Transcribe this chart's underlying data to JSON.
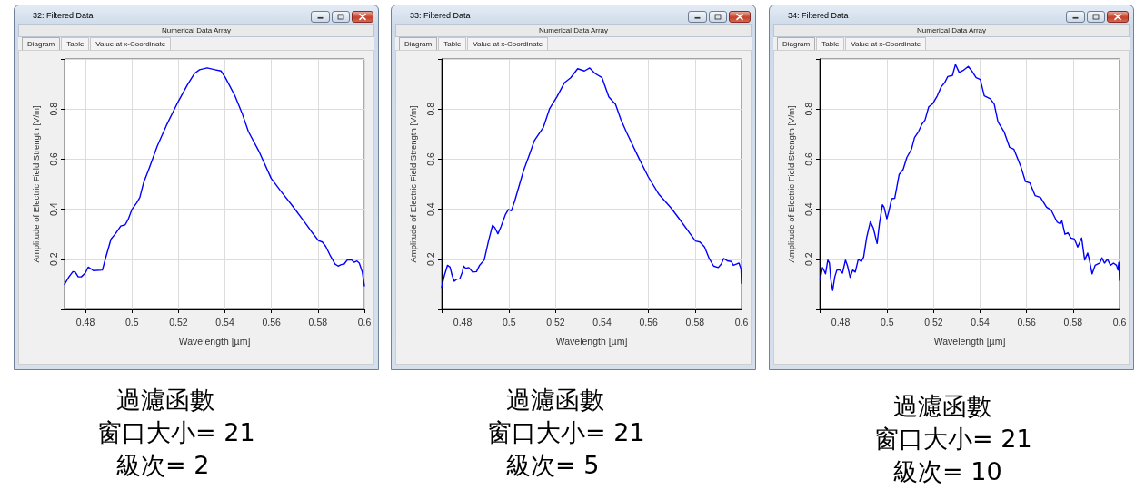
{
  "chart_data": [
    {
      "type": "line",
      "title": "32: Filtered Data",
      "subtitle": "Numerical Data Array",
      "xlabel": "Wavelength [µm]",
      "ylabel": "Amplitude of Electric Field Strength [V/m]",
      "annotations": [
        "Diagram",
        "Table",
        "Value at x-Coordinate",
        "過濾函數",
        "窗口大小= 21",
        "級次= 2"
      ],
      "color": "#0000ff",
      "marker": "none",
      "grid": true,
      "xlim": [
        0.471,
        0.6
      ],
      "ylim": [
        0,
        1
      ],
      "xticks": [
        0.48,
        0.5,
        0.52,
        0.54,
        0.56,
        0.58,
        0.6
      ],
      "yticks": [
        0.2,
        0.4,
        0.6,
        0.8
      ],
      "x": [
        0.471,
        0.4729,
        0.4746,
        0.4756,
        0.4769,
        0.4782,
        0.4799,
        0.4812,
        0.4821,
        0.4834,
        0.4873,
        0.4886,
        0.491,
        0.4929,
        0.4952,
        0.4971,
        0.4984,
        0.5,
        0.5021,
        0.5034,
        0.505,
        0.5076,
        0.5109,
        0.5148,
        0.5193,
        0.5239,
        0.5269,
        0.5291,
        0.5324,
        0.5357,
        0.5383,
        0.5402,
        0.5442,
        0.5474,
        0.5501,
        0.5546,
        0.5599,
        0.5638,
        0.569,
        0.5743,
        0.5776,
        0.5802,
        0.5819,
        0.5834,
        0.5854,
        0.5874,
        0.5887,
        0.59,
        0.5913,
        0.5926,
        0.5946,
        0.5956,
        0.5968,
        0.5978,
        0.5991,
        0.6
      ],
      "values": [
        0.1,
        0.13,
        0.151,
        0.149,
        0.13,
        0.13,
        0.145,
        0.169,
        0.164,
        0.155,
        0.157,
        0.203,
        0.281,
        0.302,
        0.333,
        0.338,
        0.36,
        0.399,
        0.426,
        0.447,
        0.505,
        0.568,
        0.652,
        0.734,
        0.819,
        0.897,
        0.942,
        0.957,
        0.964,
        0.957,
        0.952,
        0.925,
        0.855,
        0.783,
        0.71,
        0.632,
        0.523,
        0.475,
        0.414,
        0.348,
        0.306,
        0.275,
        0.269,
        0.251,
        0.213,
        0.181,
        0.173,
        0.179,
        0.181,
        0.197,
        0.197,
        0.188,
        0.193,
        0.185,
        0.149,
        0.094
      ]
    },
    {
      "type": "line",
      "title": "33: Filtered Data",
      "subtitle": "Numerical Data Array",
      "xlabel": "Wavelength [µm]",
      "ylabel": "Amplitude of Electric Field Strength [V/m]",
      "annotations": [
        "Diagram",
        "Table",
        "Value at x-Coordinate",
        "過濾函數",
        "窗口大小= 21",
        "級次= 5"
      ],
      "color": "#0000ff",
      "marker": "none",
      "grid": true,
      "xlim": [
        0.471,
        0.6
      ],
      "ylim": [
        0,
        1
      ],
      "xticks": [
        0.48,
        0.5,
        0.52,
        0.54,
        0.56,
        0.58,
        0.6
      ],
      "yticks": [
        0.2,
        0.4,
        0.6,
        0.8
      ],
      "x": [
        0.471,
        0.4722,
        0.4735,
        0.4746,
        0.4755,
        0.4764,
        0.4775,
        0.4788,
        0.4799,
        0.4804,
        0.4814,
        0.4827,
        0.4843,
        0.486,
        0.4873,
        0.4893,
        0.4912,
        0.4929,
        0.4939,
        0.4952,
        0.4965,
        0.4984,
        0.4997,
        0.501,
        0.5024,
        0.5043,
        0.5063,
        0.5086,
        0.5109,
        0.5148,
        0.5174,
        0.5206,
        0.5239,
        0.5265,
        0.5295,
        0.5324,
        0.5347,
        0.537,
        0.54,
        0.5429,
        0.5458,
        0.5481,
        0.5507,
        0.556,
        0.5599,
        0.5645,
        0.5697,
        0.5736,
        0.5776,
        0.5802,
        0.5821,
        0.5841,
        0.5861,
        0.588,
        0.59,
        0.5913,
        0.5923,
        0.5939,
        0.5956,
        0.5965,
        0.5978,
        0.5989,
        0.5998,
        0.6
      ],
      "values": [
        0.088,
        0.136,
        0.176,
        0.169,
        0.136,
        0.112,
        0.121,
        0.122,
        0.149,
        0.173,
        0.164,
        0.167,
        0.149,
        0.151,
        0.176,
        0.197,
        0.275,
        0.336,
        0.326,
        0.302,
        0.33,
        0.378,
        0.399,
        0.394,
        0.432,
        0.493,
        0.556,
        0.614,
        0.674,
        0.728,
        0.801,
        0.849,
        0.906,
        0.925,
        0.961,
        0.952,
        0.964,
        0.942,
        0.925,
        0.849,
        0.819,
        0.758,
        0.704,
        0.601,
        0.529,
        0.459,
        0.405,
        0.357,
        0.306,
        0.273,
        0.269,
        0.249,
        0.203,
        0.173,
        0.167,
        0.181,
        0.203,
        0.194,
        0.191,
        0.176,
        0.181,
        0.185,
        0.161,
        0.104
      ]
    },
    {
      "type": "line",
      "title": "34: Filtered Data",
      "subtitle": "Numerical Data Array",
      "xlabel": "Wavelength [µm]",
      "ylabel": "Amplitude of Electric Field Strength [V/m]",
      "annotations": [
        "Diagram",
        "Table",
        "Value at x-Coordinate",
        "過濾函數",
        "窗口大小= 21",
        "級次= 10"
      ],
      "color": "#0000ff",
      "marker": "none",
      "grid": true,
      "xlim": [
        0.471,
        0.6
      ],
      "ylim": [
        0,
        1
      ],
      "xticks": [
        0.48,
        0.5,
        0.52,
        0.54,
        0.56,
        0.58,
        0.6
      ],
      "yticks": [
        0.2,
        0.4,
        0.6,
        0.8
      ],
      "x": [
        0.4712,
        0.4722,
        0.4729,
        0.4735,
        0.4745,
        0.4752,
        0.4758,
        0.4766,
        0.4775,
        0.4784,
        0.4797,
        0.4808,
        0.4821,
        0.483,
        0.4841,
        0.4852,
        0.4863,
        0.4876,
        0.4889,
        0.4899,
        0.4912,
        0.4928,
        0.4941,
        0.4957,
        0.4967,
        0.498,
        0.4987,
        0.4999,
        0.5007,
        0.502,
        0.5033,
        0.5052,
        0.5069,
        0.5085,
        0.5105,
        0.5118,
        0.5135,
        0.515,
        0.5163,
        0.5179,
        0.5196,
        0.5216,
        0.5233,
        0.5248,
        0.5261,
        0.5281,
        0.5294,
        0.531,
        0.5327,
        0.5349,
        0.5366,
        0.5383,
        0.5401,
        0.5418,
        0.5444,
        0.5461,
        0.5477,
        0.5503,
        0.5527,
        0.5545,
        0.5575,
        0.5595,
        0.5614,
        0.5637,
        0.566,
        0.5686,
        0.5706,
        0.5732,
        0.5745,
        0.5752,
        0.5765,
        0.5778,
        0.5791,
        0.5806,
        0.582,
        0.5837,
        0.585,
        0.5863,
        0.5869,
        0.5882,
        0.5895,
        0.5915,
        0.5924,
        0.5935,
        0.5948,
        0.5961,
        0.5974,
        0.5987,
        0.5993,
        0.5997,
        0.6
      ],
      "values": [
        0.118,
        0.167,
        0.155,
        0.142,
        0.197,
        0.185,
        0.118,
        0.076,
        0.13,
        0.157,
        0.157,
        0.145,
        0.197,
        0.173,
        0.128,
        0.157,
        0.149,
        0.2,
        0.191,
        0.209,
        0.287,
        0.35,
        0.324,
        0.263,
        0.342,
        0.418,
        0.408,
        0.362,
        0.39,
        0.442,
        0.444,
        0.539,
        0.559,
        0.607,
        0.64,
        0.686,
        0.71,
        0.74,
        0.756,
        0.809,
        0.821,
        0.853,
        0.889,
        0.906,
        0.93,
        0.934,
        0.978,
        0.946,
        0.954,
        0.97,
        0.95,
        0.925,
        0.918,
        0.853,
        0.841,
        0.819,
        0.749,
        0.71,
        0.647,
        0.64,
        0.571,
        0.511,
        0.505,
        0.454,
        0.447,
        0.408,
        0.396,
        0.348,
        0.342,
        0.354,
        0.3,
        0.306,
        0.285,
        0.281,
        0.249,
        0.285,
        0.197,
        0.225,
        0.203,
        0.142,
        0.176,
        0.185,
        0.206,
        0.185,
        0.2,
        0.176,
        0.185,
        0.176,
        0.157,
        0.188,
        0.116
      ]
    }
  ]
}
